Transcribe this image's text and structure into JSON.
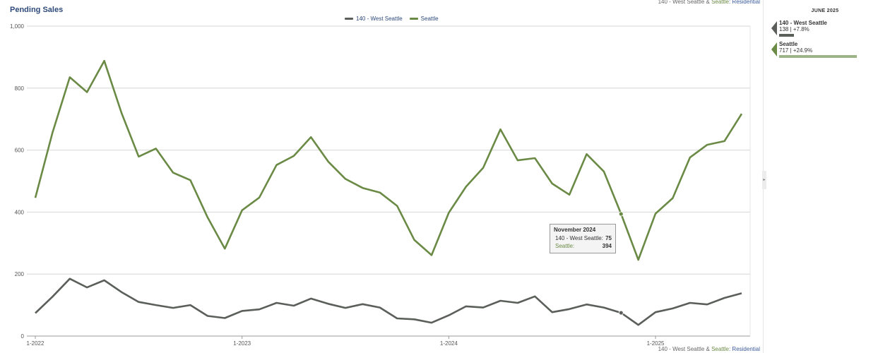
{
  "page": {
    "title": "Pending Sales",
    "source_prefix": "140 - West Seattle & ",
    "source_seattle": "Seattle",
    "source_suffix": ": Residential"
  },
  "chart_data": {
    "type": "line",
    "title": "Pending Sales",
    "xlabel": "",
    "ylabel": "",
    "x": [
      "1-2022",
      "2-2022",
      "3-2022",
      "4-2022",
      "5-2022",
      "6-2022",
      "7-2022",
      "8-2022",
      "9-2022",
      "10-2022",
      "11-2022",
      "12-2022",
      "1-2023",
      "2-2023",
      "3-2023",
      "4-2023",
      "5-2023",
      "6-2023",
      "7-2023",
      "8-2023",
      "9-2023",
      "10-2023",
      "11-2023",
      "12-2023",
      "1-2024",
      "2-2024",
      "3-2024",
      "4-2024",
      "5-2024",
      "6-2024",
      "7-2024",
      "8-2024",
      "9-2024",
      "10-2024",
      "11-2024",
      "12-2024",
      "1-2025",
      "2-2025",
      "3-2025",
      "4-2025",
      "5-2025",
      "6-2025"
    ],
    "xticks": [
      "1-2022",
      "1-2023",
      "1-2024",
      "1-2025"
    ],
    "ylim": [
      0,
      1000
    ],
    "yticks": [
      0,
      200,
      400,
      600,
      800,
      1000
    ],
    "ytick_labels": [
      "0",
      "200",
      "400",
      "600",
      "800",
      "1,000"
    ],
    "grid": true,
    "legend_position": "top-center",
    "series": [
      {
        "name": "140 - West Seattle",
        "color": "#5a5f5a",
        "values": [
          74,
          127,
          185,
          157,
          180,
          142,
          110,
          100,
          91,
          100,
          65,
          58,
          81,
          86,
          107,
          98,
          121,
          104,
          91,
          103,
          92,
          57,
          54,
          43,
          67,
          96,
          92,
          114,
          107,
          128,
          77,
          87,
          102,
          92,
          75,
          36,
          77,
          89,
          107,
          102,
          123,
          138
        ]
      },
      {
        "name": "Seattle",
        "color": "#6a8a45",
        "values": [
          446,
          657,
          835,
          787,
          888,
          720,
          579,
          605,
          527,
          503,
          383,
          282,
          406,
          447,
          552,
          581,
          642,
          563,
          507,
          478,
          463,
          420,
          310,
          261,
          398,
          482,
          543,
          667,
          567,
          574,
          492,
          456,
          587,
          531,
          394,
          246,
          395,
          445,
          576,
          617,
          629,
          717
        ]
      }
    ],
    "tooltip": {
      "title": "November 2024",
      "rows": [
        {
          "label": "140 - West Seattle:",
          "value": "75"
        },
        {
          "label": "Seattle:",
          "value": "394"
        }
      ],
      "index": 34
    }
  },
  "side_panel": {
    "date": "JUNE 2025",
    "items": [
      {
        "name": "140 - West Seattle",
        "value_text": "138 | +7.8%",
        "color": "#5a5f5a",
        "share": 0.19
      },
      {
        "name": "Seattle",
        "value_text": "717 | +24.9%",
        "color": "#9cb487",
        "share": 1.0
      }
    ]
  },
  "controls": {
    "collapse_glyph": "▸"
  }
}
